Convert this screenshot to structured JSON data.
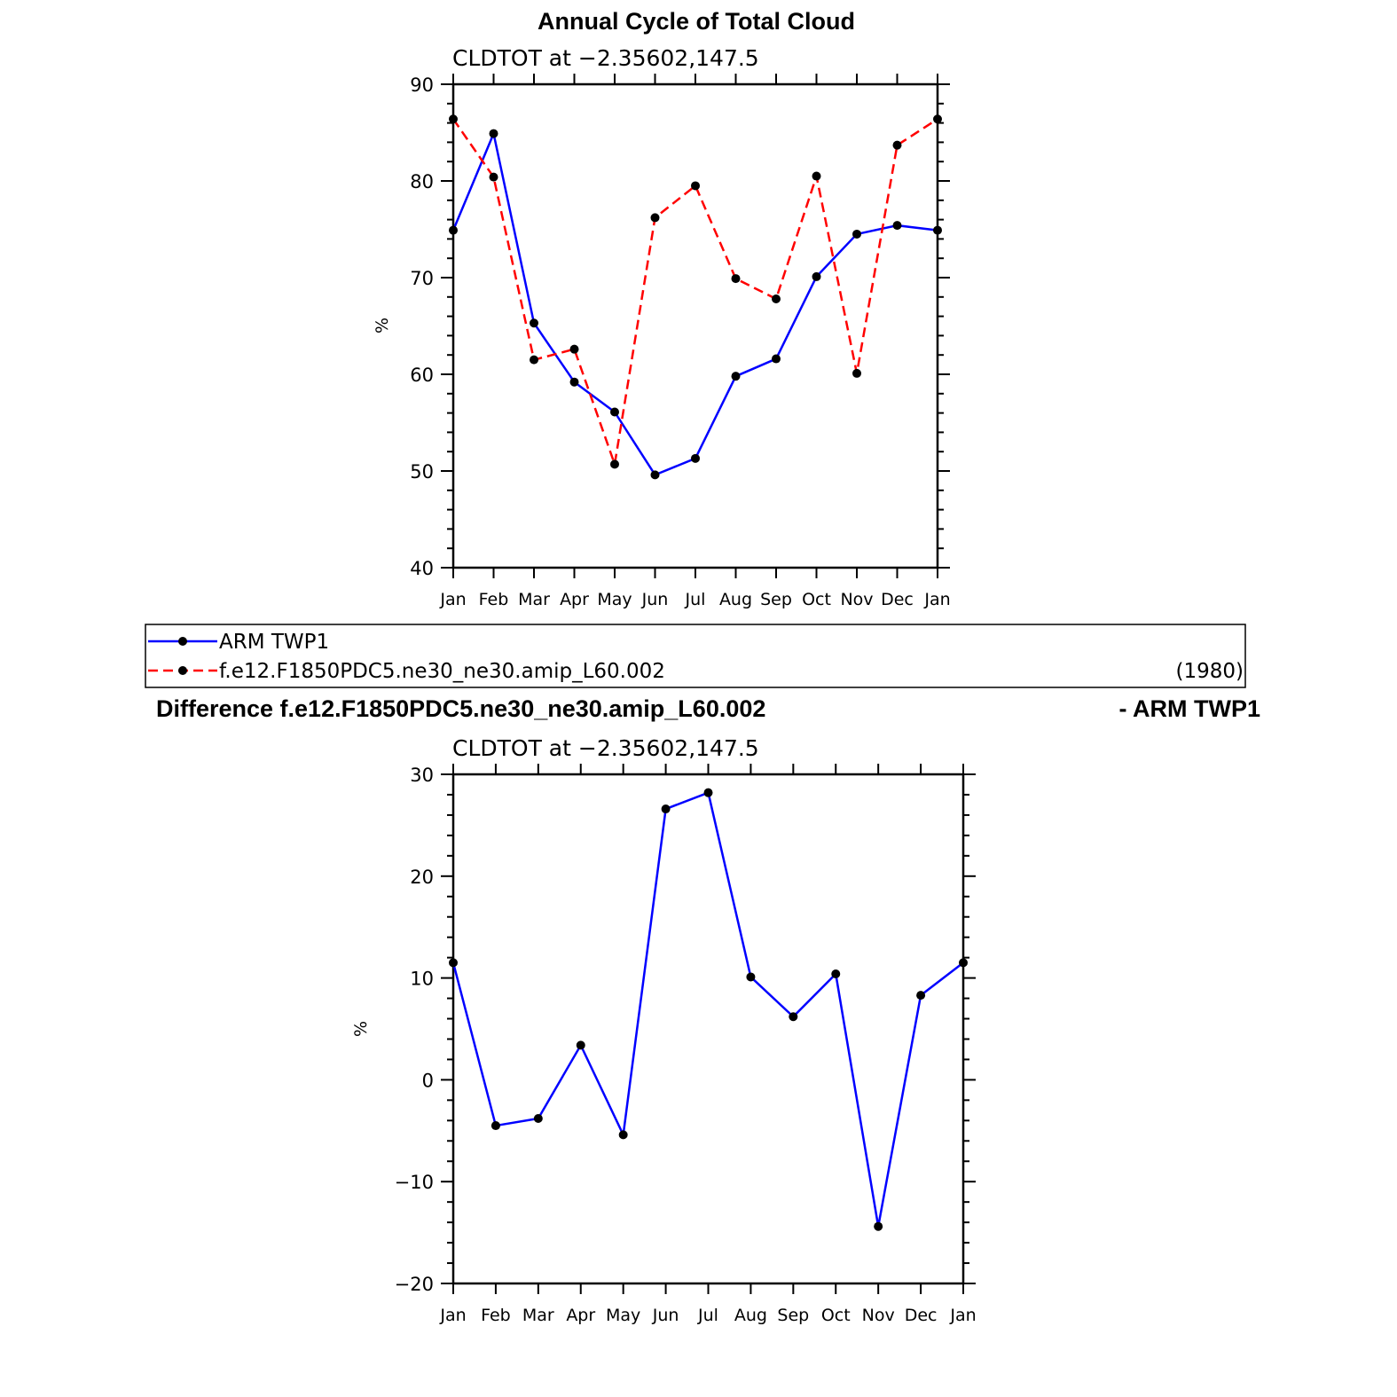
{
  "colors": {
    "obs": "#0000ff",
    "model": "#ff0000",
    "marker": "#000000",
    "axis": "#000000"
  },
  "legend": {
    "items": [
      {
        "label": "ARM TWP1",
        "style": "solid",
        "color": "#0000ff"
      },
      {
        "label": "f.e12.F1850PDC5.ne30_ne30.amip_L60.002",
        "style": "dashed",
        "color": "#ff0000"
      }
    ],
    "years": "(1980)"
  },
  "chart_data": [
    {
      "type": "line",
      "title": "Annual Cycle of Total Cloud",
      "subtitle": "CLDTOT at −2.35602,147.5",
      "ylabel": "%",
      "ylim": [
        40,
        90
      ],
      "yticks": [
        40,
        50,
        60,
        70,
        80,
        90
      ],
      "categories": [
        "Jan",
        "Feb",
        "Mar",
        "Apr",
        "May",
        "Jun",
        "Jul",
        "Aug",
        "Sep",
        "Oct",
        "Nov",
        "Dec",
        "Jan"
      ],
      "series": [
        {
          "name": "ARM TWP1",
          "values": [
            74.9,
            84.9,
            65.3,
            59.2,
            56.1,
            49.6,
            51.3,
            59.8,
            61.6,
            70.1,
            74.5,
            75.4,
            74.9
          ]
        },
        {
          "name": "f.e12.F1850PDC5.ne30_ne30.amip_L60.002",
          "values": [
            86.4,
            80.4,
            61.5,
            62.6,
            50.7,
            76.2,
            79.5,
            69.9,
            67.8,
            80.5,
            60.1,
            83.7,
            86.4
          ]
        }
      ]
    },
    {
      "type": "line",
      "title_left": "Difference f.e12.F1850PDC5.ne30_ne30.amip_L60.002",
      "title_right": "- ARM TWP1",
      "subtitle": "CLDTOT at −2.35602,147.5",
      "ylabel": "%",
      "ylim": [
        -20,
        30
      ],
      "yticks": [
        -20,
        -10,
        0,
        10,
        20,
        30
      ],
      "categories": [
        "Jan",
        "Feb",
        "Mar",
        "Apr",
        "May",
        "Jun",
        "Jul",
        "Aug",
        "Sep",
        "Oct",
        "Nov",
        "Dec",
        "Jan"
      ],
      "series": [
        {
          "values": [
            11.5,
            -4.5,
            -3.8,
            3.4,
            -5.4,
            26.6,
            28.2,
            10.1,
            6.2,
            10.4,
            -14.4,
            8.3,
            11.5
          ]
        }
      ]
    }
  ]
}
